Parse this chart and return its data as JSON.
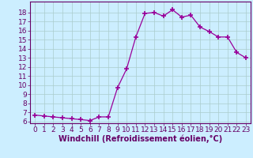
{
  "x": [
    0,
    1,
    2,
    3,
    4,
    5,
    6,
    7,
    8,
    9,
    10,
    11,
    12,
    13,
    14,
    15,
    16,
    17,
    18,
    19,
    20,
    21,
    22,
    23
  ],
  "y": [
    6.7,
    6.6,
    6.5,
    6.4,
    6.3,
    6.2,
    6.1,
    6.5,
    6.5,
    9.7,
    11.8,
    15.3,
    17.9,
    18.0,
    17.6,
    18.3,
    17.5,
    17.7,
    16.4,
    15.9,
    15.3,
    15.3,
    13.6,
    13.0
  ],
  "line_color": "#990099",
  "marker": "+",
  "marker_size": 4,
  "marker_lw": 1.2,
  "bg_color": "#cceeff",
  "grid_color": "#aacccc",
  "xlabel": "Windchill (Refroidissement éolien,°C)",
  "xlabel_color": "#660066",
  "tick_color": "#660066",
  "ylim": [
    5.8,
    19.2
  ],
  "xlim": [
    -0.5,
    23.5
  ],
  "yticks": [
    6,
    7,
    8,
    9,
    10,
    11,
    12,
    13,
    14,
    15,
    16,
    17,
    18
  ],
  "xticks": [
    0,
    1,
    2,
    3,
    4,
    5,
    6,
    7,
    8,
    9,
    10,
    11,
    12,
    13,
    14,
    15,
    16,
    17,
    18,
    19,
    20,
    21,
    22,
    23
  ],
  "tick_fontsize": 6.5,
  "xlabel_fontsize": 7
}
